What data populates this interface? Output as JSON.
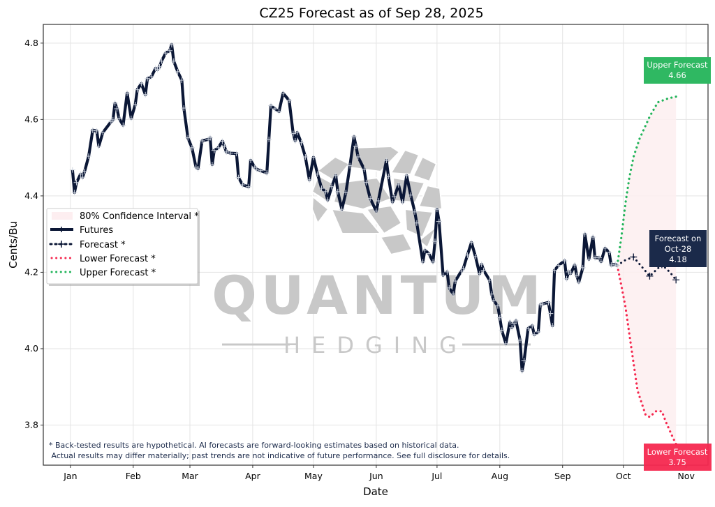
{
  "chart_data": {
    "type": "line",
    "title": "CZ25 Forecast as of Sep 28, 2025",
    "xlabel": "Date",
    "ylabel": "Cents/Bu",
    "ylim": [
      3.695,
      4.849
    ],
    "xlim_day_of_year": [
      -12.4,
      315.8
    ],
    "grid": true,
    "x_unit": "day of year 2025",
    "yticks": [
      3.8,
      4.0,
      4.2,
      4.4,
      4.6,
      4.8
    ],
    "ytick_labels": [
      "3.8",
      "4.0",
      "4.2",
      "4.4",
      "4.6",
      "4.8"
    ],
    "xticks": [
      {
        "day": 1,
        "label": "Jan"
      },
      {
        "day": 32,
        "label": "Feb"
      },
      {
        "day": 60,
        "label": "Mar"
      },
      {
        "day": 91,
        "label": "Apr"
      },
      {
        "day": 121,
        "label": "May"
      },
      {
        "day": 152,
        "label": "Jun"
      },
      {
        "day": 182,
        "label": "Jul"
      },
      {
        "day": 213,
        "label": "Aug"
      },
      {
        "day": 244,
        "label": "Sep"
      },
      {
        "day": 274,
        "label": "Oct"
      },
      {
        "day": 305,
        "label": "Nov"
      }
    ],
    "legend": {
      "placement": "center-left",
      "entries": [
        "80% Confidence Interval *",
        "Futures",
        "Forecast *",
        "Lower Forecast *",
        "Upper Forecast *"
      ]
    },
    "colors": {
      "futures": "#0b1736",
      "forecast": "#0b1736",
      "lower": "#f5284f",
      "upper": "#22b45a",
      "band": "#fdeef0",
      "forecast_box": "#1b2a4a",
      "upper_box": "#2fb862",
      "lower_box": "#f5284f",
      "watermark": "#c8c8c8"
    },
    "series": [
      {
        "name": "Futures",
        "x": [
          2,
          3,
          4,
          6,
          7,
          8,
          10,
          12,
          14,
          15,
          17,
          21,
          22,
          23,
          24,
          25,
          27,
          29,
          31,
          33,
          34,
          36,
          38,
          39,
          41,
          43,
          44,
          45,
          46,
          48,
          50,
          51,
          52,
          54,
          56,
          57,
          59,
          61,
          63,
          64,
          66,
          69,
          70,
          71,
          72,
          74,
          76,
          77,
          78,
          80,
          83,
          84,
          86,
          89,
          90,
          92,
          93,
          95,
          98,
          99,
          100,
          102,
          104,
          106,
          109,
          111,
          112,
          113,
          115,
          117,
          119,
          121,
          123,
          125,
          127,
          128,
          130,
          132,
          133,
          135,
          137,
          139,
          141,
          142,
          143,
          146,
          147,
          149,
          152,
          153,
          157,
          158,
          160,
          161,
          163,
          165,
          167,
          169,
          171,
          172,
          175,
          176,
          178,
          180,
          181,
          182,
          183,
          185,
          187,
          188,
          190,
          191,
          194,
          195,
          197,
          199,
          201,
          203,
          204,
          205,
          208,
          209,
          210,
          212,
          213,
          214,
          216,
          218,
          219,
          220,
          221,
          223,
          224,
          225,
          227,
          229,
          230,
          232,
          233,
          234,
          237,
          238,
          239,
          240,
          242,
          245,
          246,
          247,
          248,
          250,
          251,
          252,
          254,
          255,
          257,
          259,
          260,
          262,
          263,
          265,
          267,
          268,
          270,
          271
        ],
        "values": [
          4.468,
          4.409,
          4.435,
          4.457,
          4.449,
          4.464,
          4.504,
          4.572,
          4.57,
          4.53,
          4.566,
          4.594,
          4.599,
          4.643,
          4.628,
          4.603,
          4.585,
          4.669,
          4.603,
          4.639,
          4.678,
          4.694,
          4.665,
          4.707,
          4.712,
          4.734,
          4.731,
          4.738,
          4.753,
          4.774,
          4.78,
          4.796,
          4.753,
          4.725,
          4.703,
          4.63,
          4.552,
          4.526,
          4.475,
          4.471,
          4.544,
          4.548,
          4.552,
          4.482,
          4.519,
          4.526,
          4.543,
          4.53,
          4.515,
          4.512,
          4.511,
          4.448,
          4.429,
          4.424,
          4.493,
          4.475,
          4.47,
          4.466,
          4.46,
          4.548,
          4.636,
          4.628,
          4.621,
          4.669,
          4.65,
          4.563,
          4.544,
          4.566,
          4.539,
          4.502,
          4.442,
          4.501,
          4.457,
          4.42,
          4.411,
          4.389,
          4.424,
          4.453,
          4.411,
          4.365,
          4.409,
          4.479,
          4.555,
          4.53,
          4.502,
          4.47,
          4.435,
          4.393,
          4.36,
          4.387,
          4.493,
          4.451,
          4.384,
          4.398,
          4.429,
          4.384,
          4.453,
          4.402,
          4.358,
          4.329,
          4.227,
          4.258,
          4.249,
          4.227,
          4.281,
          4.365,
          4.333,
          4.192,
          4.201,
          4.159,
          4.143,
          4.177,
          4.203,
          4.21,
          4.245,
          4.278,
          4.241,
          4.196,
          4.221,
          4.205,
          4.179,
          4.143,
          4.126,
          4.112,
          4.081,
          4.048,
          4.013,
          4.07,
          4.055,
          4.066,
          4.073,
          4.022,
          3.942,
          3.969,
          4.053,
          4.06,
          4.037,
          4.044,
          4.115,
          4.117,
          4.121,
          4.092,
          4.06,
          4.205,
          4.218,
          4.23,
          4.183,
          4.201,
          4.197,
          4.219,
          4.192,
          4.174,
          4.212,
          4.3,
          4.234,
          4.292,
          4.238,
          4.238,
          4.228,
          4.263,
          4.252,
          4.219,
          4.221,
          4.218
        ]
      },
      {
        "name": "Forecast *",
        "x": [
          271,
          275,
          279,
          283,
          287,
          290,
          293,
          297,
          300
        ],
        "values": [
          4.218,
          4.232,
          4.24,
          4.215,
          4.19,
          4.205,
          4.22,
          4.2,
          4.18
        ],
        "markers": [
          279,
          287,
          293,
          300
        ]
      },
      {
        "name": "Lower Forecast *",
        "x": [
          271,
          273,
          275,
          278,
          281,
          285,
          287,
          290,
          293,
          295,
          298,
          300
        ],
        "values": [
          4.218,
          4.165,
          4.11,
          3.999,
          3.89,
          3.826,
          3.821,
          3.836,
          3.836,
          3.808,
          3.772,
          3.75
        ]
      },
      {
        "name": "Upper Forecast *",
        "x": [
          271,
          273,
          275,
          277,
          279,
          282,
          287,
          291,
          296,
          300
        ],
        "values": [
          4.218,
          4.292,
          4.38,
          4.45,
          4.502,
          4.55,
          4.608,
          4.645,
          4.655,
          4.66
        ]
      }
    ],
    "annotations": {
      "forecast": {
        "line1": "Forecast on",
        "line2": "Oct-28",
        "value": "4.18"
      },
      "upper": {
        "label": "Upper Forecast",
        "value": "4.66"
      },
      "lower": {
        "label": "Lower Forecast",
        "value": "3.75"
      }
    },
    "footnote": [
      "* Back-tested results are hypothetical. AI forecasts are forward-looking estimates based on historical data.",
      " Actual results may differ materially; past trends are not indicative of future performance. See full disclosure for details."
    ]
  },
  "watermark": {
    "line1": "QUANTUM",
    "line2": "HEDGING"
  }
}
